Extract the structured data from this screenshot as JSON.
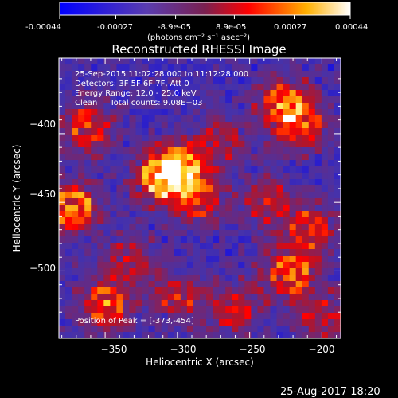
{
  "colorbar": {
    "tick_labels": [
      "-0.00044",
      "-0.00027",
      "-8.9e-05",
      "8.9e-05",
      "0.00027",
      "0.00044"
    ],
    "unit_label": "(photons cm⁻² s⁻¹ asec⁻²)",
    "range": [
      -0.00044,
      0.00044
    ]
  },
  "chart_data": {
    "type": "heatmap",
    "title": "Reconstructed RHESSI Image",
    "xlabel": "Heliocentric X (arcsec)",
    "ylabel": "Heliocentric Y (arcsec)",
    "xlim": [
      -382,
      -187
    ],
    "ylim": [
      -549,
      -345
    ],
    "xticks": [
      -350,
      -300,
      -250,
      -200
    ],
    "xtick_labels": [
      "−350",
      "−300",
      "−250",
      "−200"
    ],
    "yticks": [
      -400,
      -450,
      -500
    ],
    "ytick_labels": [
      "−400",
      "−450",
      "−500"
    ],
    "colormap": "blue-purple-red-yellow-white",
    "peak": {
      "x": -373,
      "y": -454
    },
    "bright_regions": [
      {
        "x": -373,
        "y": -454,
        "level": 1.0
      },
      {
        "x": -362,
        "y": -395,
        "level": 0.75
      },
      {
        "x": -312,
        "y": -432,
        "level": 0.9
      },
      {
        "x": -298,
        "y": -424,
        "level": 0.85
      },
      {
        "x": -285,
        "y": -448,
        "level": 0.6
      },
      {
        "x": -226,
        "y": -378,
        "level": 0.8
      },
      {
        "x": -214,
        "y": -395,
        "level": 0.65
      },
      {
        "x": -222,
        "y": -503,
        "level": 0.85
      },
      {
        "x": -208,
        "y": -470,
        "level": 0.7
      },
      {
        "x": -350,
        "y": -525,
        "level": 0.8
      },
      {
        "x": -300,
        "y": -518,
        "level": 0.55
      },
      {
        "x": -262,
        "y": -528,
        "level": 0.6
      },
      {
        "x": -334,
        "y": -492,
        "level": 0.5
      },
      {
        "x": -270,
        "y": -405,
        "level": 0.45
      },
      {
        "x": -238,
        "y": -450,
        "level": 0.55
      },
      {
        "x": -198,
        "y": -535,
        "level": 0.55
      }
    ]
  },
  "annotations": {
    "time_range": "25-Sep-2015 11:02:28.000 to 11:12:28.000",
    "detectors": "Detectors: 3F 5F 6F 7F, Att 0",
    "energy_range": "Energy Range: 12.0 - 25.0 keV",
    "clean_counts": "Clean     Total counts: 9.08E+03",
    "peak_position": "Position of Peak = [-373,-454]"
  },
  "footer": {
    "date": "25-Aug-2017 18:20"
  }
}
